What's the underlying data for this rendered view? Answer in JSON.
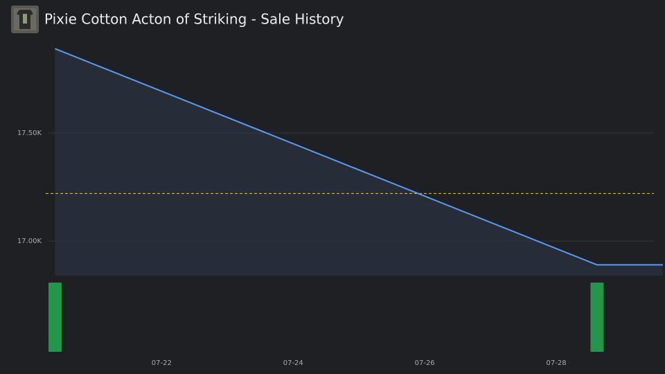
{
  "chart_data": {
    "type": "line",
    "title": "Pixie Cotton Acton of Striking - Sale History",
    "x": [
      20.38,
      28.62,
      29.62
    ],
    "xlim": [
      20.28,
      29.6
    ],
    "xticks": [
      {
        "value": 22,
        "label": "07-22"
      },
      {
        "value": 24,
        "label": "07-24"
      },
      {
        "value": 26,
        "label": "07-26"
      },
      {
        "value": 28,
        "label": "07-28"
      }
    ],
    "series": [
      {
        "color": "#5b9cf0",
        "values": [
          17890,
          16890,
          16890
        ]
      }
    ],
    "area_color": "#262c38",
    "ylim": [
      16840,
      17920
    ],
    "yticks": [
      {
        "value": 17500,
        "label": "17.50K"
      },
      {
        "value": 17000,
        "label": "17.00K"
      }
    ],
    "grid": true,
    "average_line": {
      "value": 17220,
      "color": "#e2b42a"
    },
    "volume": {
      "type": "bar",
      "x": [
        20.38,
        28.62
      ],
      "values": [
        1,
        1
      ],
      "ylim": [
        0,
        1
      ],
      "color": "#22964b"
    }
  }
}
